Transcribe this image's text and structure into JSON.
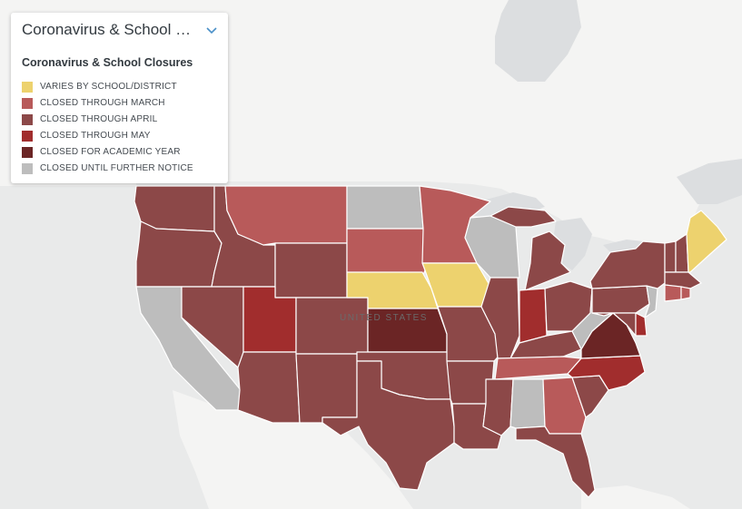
{
  "panel": {
    "title": "Coronavirus & School Closures",
    "legend_title": "Coronavirus & School Closures",
    "legend": [
      {
        "label": "VARIES BY SCHOOL/DISTRICT",
        "color": "#edd26e"
      },
      {
        "label": "CLOSED THROUGH MARCH",
        "color": "#b85a5a"
      },
      {
        "label": "CLOSED THROUGH APRIL",
        "color": "#8c4848"
      },
      {
        "label": "CLOSED THROUGH MAY",
        "color": "#a12d2d"
      },
      {
        "label": "CLOSED FOR ACADEMIC YEAR",
        "color": "#6b2525"
      },
      {
        "label": "CLOSED UNTIL FURTHER NOTICE",
        "color": "#bdbdbd"
      }
    ]
  },
  "map": {
    "country_label": "UNITED STATES",
    "colors": {
      "land": "#f4f4f3",
      "water": "#dcdee0",
      "background": "#e9eaea"
    },
    "state_status": {
      "WA": "CLOSED THROUGH APRIL",
      "OR": "CLOSED THROUGH APRIL",
      "CA": "CLOSED UNTIL FURTHER NOTICE",
      "ID": "CLOSED THROUGH APRIL",
      "NV": "CLOSED THROUGH APRIL",
      "MT": "CLOSED THROUGH MARCH",
      "WY": "CLOSED THROUGH APRIL",
      "UT": "CLOSED THROUGH MAY",
      "AZ": "CLOSED THROUGH APRIL",
      "CO": "CLOSED THROUGH APRIL",
      "NM": "CLOSED THROUGH APRIL",
      "ND": "CLOSED UNTIL FURTHER NOTICE",
      "SD": "CLOSED THROUGH MARCH",
      "NE": "VARIES BY SCHOOL/DISTRICT",
      "KS": "CLOSED FOR ACADEMIC YEAR",
      "OK": "CLOSED THROUGH APRIL",
      "TX": "CLOSED THROUGH APRIL",
      "MN": "CLOSED THROUGH MARCH",
      "IA": "VARIES BY SCHOOL/DISTRICT",
      "MO": "CLOSED THROUGH APRIL",
      "AR": "CLOSED THROUGH APRIL",
      "LA": "CLOSED THROUGH APRIL",
      "WI": "CLOSED UNTIL FURTHER NOTICE",
      "IL": "CLOSED THROUGH APRIL",
      "MI": "CLOSED THROUGH APRIL",
      "IN": "CLOSED THROUGH MAY",
      "OH": "CLOSED THROUGH APRIL",
      "KY": "CLOSED THROUGH APRIL",
      "TN": "CLOSED THROUGH MARCH",
      "MS": "CLOSED THROUGH APRIL",
      "AL": "CLOSED UNTIL FURTHER NOTICE",
      "GA": "CLOSED THROUGH MARCH",
      "FL": "CLOSED THROUGH APRIL",
      "SC": "CLOSED THROUGH APRIL",
      "NC": "CLOSED THROUGH MAY",
      "VA": "CLOSED FOR ACADEMIC YEAR",
      "WV": "CLOSED UNTIL FURTHER NOTICE",
      "PA": "CLOSED THROUGH APRIL",
      "NY": "CLOSED THROUGH APRIL",
      "ME": "VARIES BY SCHOOL/DISTRICT",
      "VT": "CLOSED THROUGH APRIL",
      "NH": "CLOSED THROUGH APRIL",
      "MA": "CLOSED THROUGH APRIL",
      "CT": "CLOSED THROUGH MARCH",
      "RI": "CLOSED THROUGH MARCH",
      "NJ": "CLOSED UNTIL FURTHER NOTICE",
      "DE": "CLOSED THROUGH MAY",
      "MD": "CLOSED THROUGH APRIL"
    }
  }
}
